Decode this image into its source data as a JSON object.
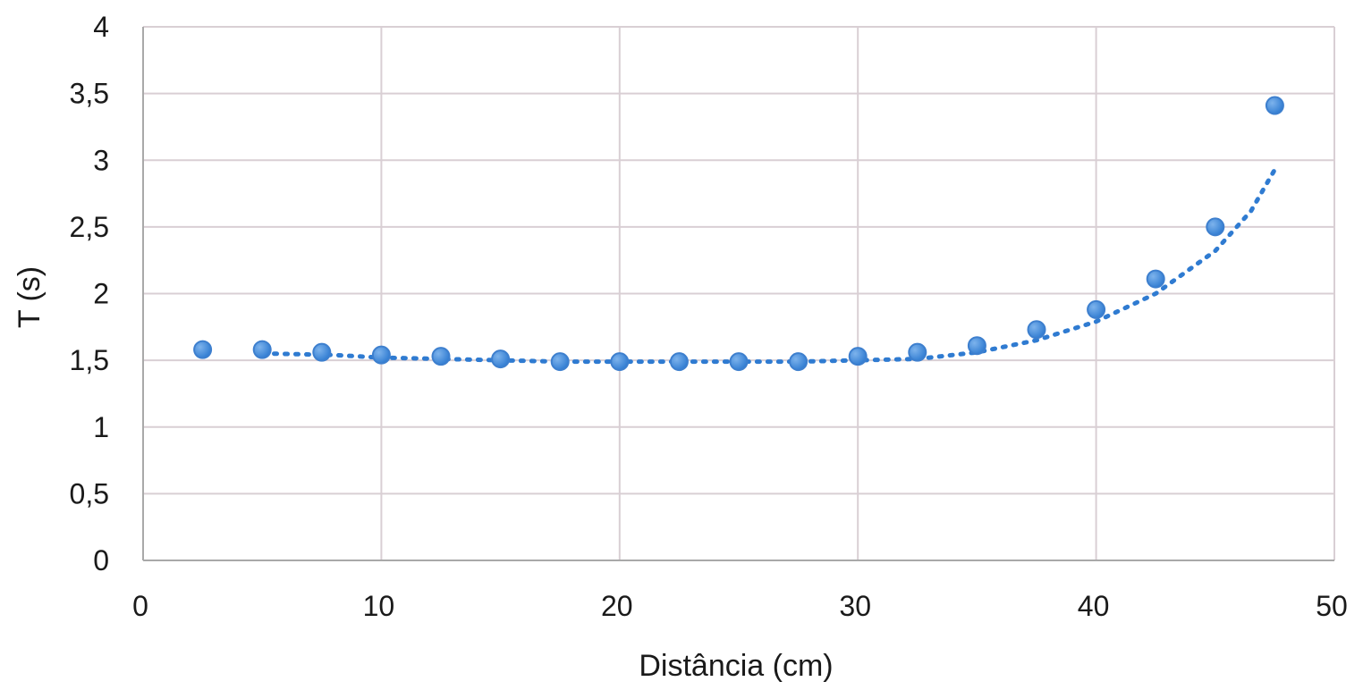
{
  "chart_data": {
    "type": "scatter",
    "title": "",
    "xlabel": "Distância (cm)",
    "ylabel": "T (s)",
    "xlim": [
      0,
      50
    ],
    "ylim": [
      0,
      4
    ],
    "x_ticks": [
      0,
      10,
      20,
      30,
      40,
      50
    ],
    "x_tick_labels": [
      "0",
      "10",
      "20",
      "30",
      "40",
      "50"
    ],
    "y_ticks": [
      0,
      0.5,
      1,
      1.5,
      2,
      2.5,
      3,
      3.5,
      4
    ],
    "y_tick_labels": [
      "0",
      "0,5",
      "1",
      "1,5",
      "2",
      "2,5",
      "3",
      "3,5",
      "4"
    ],
    "grid": true,
    "legend": "none",
    "series": [
      {
        "x": [
          2.5,
          5,
          7.5,
          10,
          12.5,
          15,
          17.5,
          20,
          22.5,
          25,
          27.5,
          30,
          32.5,
          35,
          37.5,
          40,
          42.5,
          45,
          47.5
        ],
        "y": [
          1.58,
          1.58,
          1.56,
          1.54,
          1.53,
          1.51,
          1.49,
          1.49,
          1.49,
          1.49,
          1.49,
          1.53,
          1.56,
          1.61,
          1.73,
          1.88,
          2.11,
          2.5,
          3.41
        ]
      }
    ],
    "trendline": {
      "style": "dotted",
      "x": [
        5.5,
        8,
        10,
        12.5,
        15,
        17.5,
        20,
        22.5,
        25,
        27.5,
        30,
        32.5,
        35,
        37.5,
        40,
        42.5,
        45,
        46.5,
        47.5
      ],
      "y": [
        1.55,
        1.54,
        1.52,
        1.51,
        1.5,
        1.49,
        1.49,
        1.49,
        1.49,
        1.49,
        1.5,
        1.51,
        1.56,
        1.65,
        1.79,
        2.0,
        2.32,
        2.62,
        2.93
      ]
    },
    "colors": {
      "point_fill": "#2f7bd1",
      "point_highlight": "#6aa6e6",
      "trendline": "#2f7bd1",
      "grid": "#d9cfd4",
      "axis": "#a9a9a9",
      "text": "#1a1a1a"
    }
  }
}
